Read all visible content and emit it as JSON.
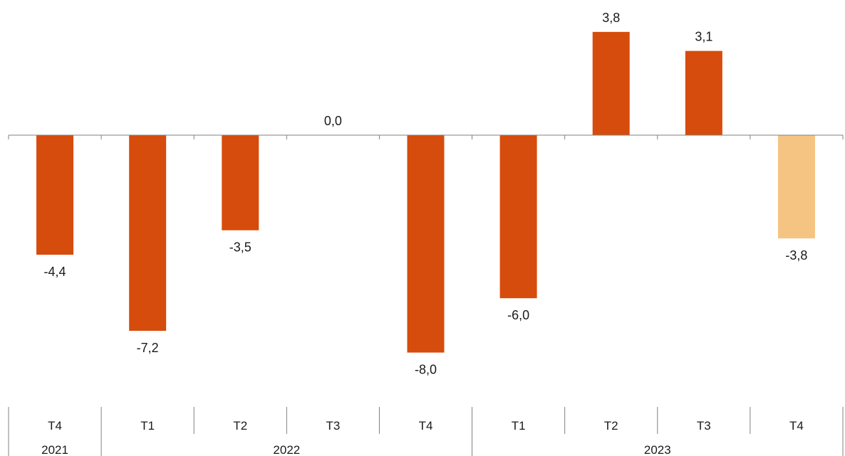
{
  "chart_data": {
    "type": "bar",
    "categories": [
      "T4",
      "T1",
      "T2",
      "T3",
      "T4",
      "T1",
      "T2",
      "T3",
      "T4"
    ],
    "years": [
      {
        "label": "2021",
        "span": 1
      },
      {
        "label": "2022",
        "span": 4
      },
      {
        "label": "2023",
        "span": 4
      }
    ],
    "values": [
      -4.4,
      -7.2,
      -3.5,
      0.0,
      -8.0,
      -6.0,
      3.8,
      3.1,
      -3.8
    ],
    "value_labels": [
      "-4,4",
      "-7,2",
      "-3,5",
      "0,0",
      "-8,0",
      "-6,0",
      "3,8",
      "3,1",
      "-3,8"
    ],
    "bar_colors": [
      "#d64c0d",
      "#d64c0d",
      "#d64c0d",
      "#d64c0d",
      "#d64c0d",
      "#d64c0d",
      "#d64c0d",
      "#d64c0d",
      "#f5c482"
    ],
    "ylim": [
      -8,
      3.8
    ],
    "grid": false,
    "title": "",
    "xlabel": "",
    "ylabel": ""
  }
}
